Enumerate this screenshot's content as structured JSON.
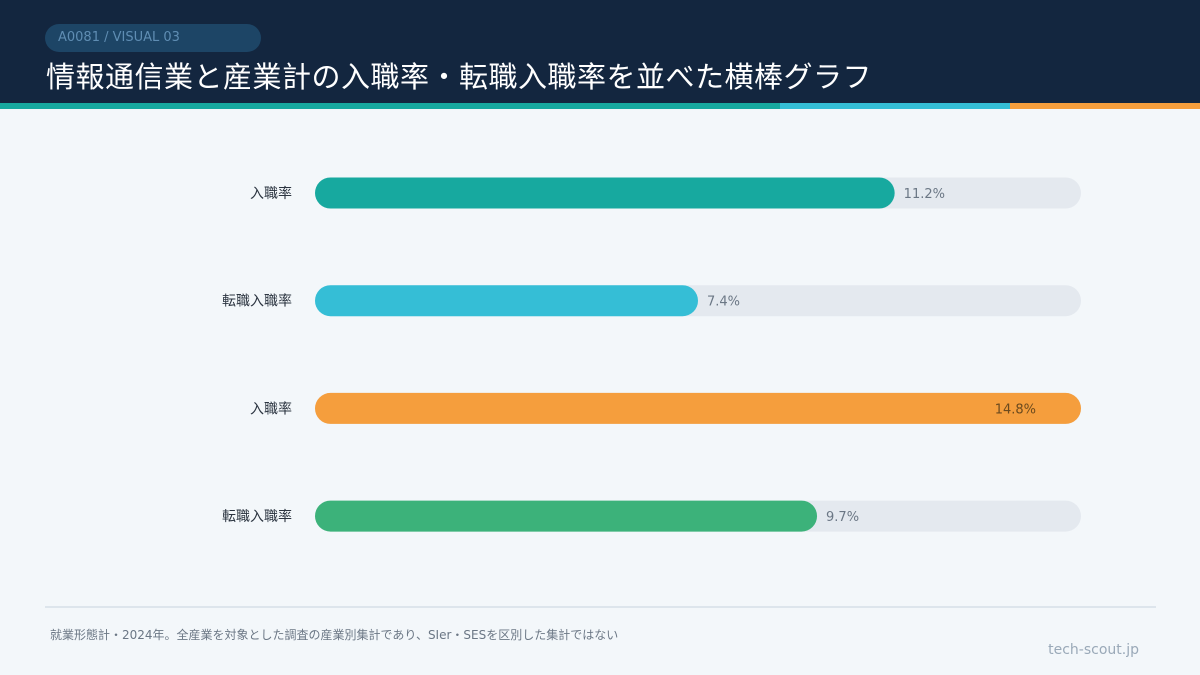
{
  "header": {
    "tag": "A0081 / VISUAL 03",
    "title": "情報通信業と産業計の入職率・転職入職率を並べた横棒グラフ"
  },
  "chart_data": {
    "type": "bar",
    "orientation": "horizontal",
    "categories": [
      "入職率",
      "転職入職率",
      "入職率",
      "転職入職率"
    ],
    "values": [
      11.2,
      7.4,
      14.8,
      9.7
    ],
    "value_labels": [
      "11.2%",
      "7.4%",
      "14.8%",
      "9.7%"
    ],
    "colors": [
      "#17a99f",
      "#35bed6",
      "#f59e3d",
      "#3cb27a"
    ],
    "track_color": "#e4e9ef",
    "xlim": [
      0,
      14.8
    ],
    "grid": false
  },
  "footer": {
    "note": "就業形態計・2024年。全産業を対象とした調査の産業別集計であり、SIer・SESを区別した集計ではない",
    "brand": "tech-scout.jp"
  }
}
